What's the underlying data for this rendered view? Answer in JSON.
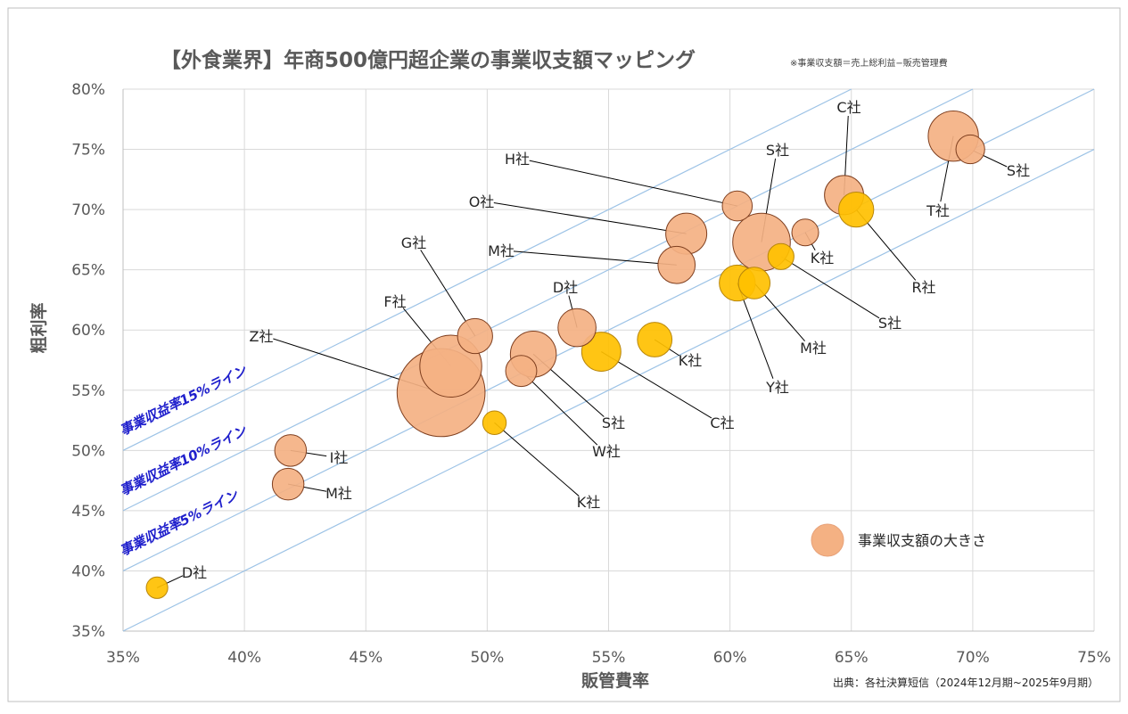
{
  "chart_data": {
    "type": "scatter",
    "title": "【外食業界】年商500億円超企業の事業収支額マッピング",
    "note": "※事業収支額＝売上総利益−販売管理費",
    "xlabel": "販管費率",
    "ylabel": "粗利率",
    "xlim": [
      35,
      75
    ],
    "ylim": [
      35,
      80
    ],
    "x_ticks": [
      "35%",
      "40%",
      "45%",
      "50%",
      "55%",
      "60%",
      "65%",
      "70%",
      "75%"
    ],
    "y_ticks": [
      "35%",
      "40%",
      "45%",
      "50%",
      "55%",
      "60%",
      "65%",
      "70%",
      "75%",
      "80%"
    ],
    "grid": true,
    "source": "出典：各社決算短信（2024年12月期~2025年9月期）",
    "legend": {
      "label": "事業収支額の大きさ",
      "placement": "bottom-right",
      "color": "#F4B183"
    },
    "colors": {
      "salmon": "#F4B183",
      "gold": "#FFC000",
      "line": "#9DC3E6",
      "line_label": "#1F1FCC",
      "grid": "#D9D9D9"
    },
    "ref_lines": [
      {
        "label": "事業収益率15%ライン",
        "offset": 15
      },
      {
        "label": "事業収益率10%ライン",
        "offset": 10
      },
      {
        "label": "事業収益率5%ライン",
        "offset": 5
      },
      {
        "label": "",
        "offset": 0
      }
    ],
    "points": [
      {
        "label": "T社",
        "x": 69.2,
        "y": 76.1,
        "size": 7,
        "color": "salmon"
      },
      {
        "label": "S社",
        "x": 69.9,
        "y": 75.0,
        "size": 1.3,
        "color": "salmon"
      },
      {
        "label": "C社",
        "x": 64.7,
        "y": 71.2,
        "size": 3.5,
        "color": "salmon"
      },
      {
        "label": "R社",
        "x": 65.2,
        "y": 70.0,
        "size": 2.5,
        "color": "gold"
      },
      {
        "label": "H社",
        "x": 60.3,
        "y": 70.3,
        "size": 1.5,
        "color": "salmon"
      },
      {
        "label": "S社",
        "x": 61.3,
        "y": 67.3,
        "size": 10,
        "color": "salmon"
      },
      {
        "label": "K社",
        "x": 63.1,
        "y": 68.1,
        "size": 1,
        "color": "salmon"
      },
      {
        "label": "S社",
        "x": 62.1,
        "y": 66.1,
        "size": 0.9,
        "color": "gold"
      },
      {
        "label": "O社",
        "x": 58.2,
        "y": 68.0,
        "size": 4,
        "color": "salmon"
      },
      {
        "label": "M社",
        "x": 57.8,
        "y": 65.4,
        "size": 3,
        "color": "salmon"
      },
      {
        "label": "M社",
        "x": 61.0,
        "y": 63.9,
        "size": 1.8,
        "color": "gold"
      },
      {
        "label": "Y社",
        "x": 60.3,
        "y": 63.9,
        "size": 2.7,
        "color": "gold"
      },
      {
        "label": "D社",
        "x": 53.7,
        "y": 60.2,
        "size": 3.2,
        "color": "salmon"
      },
      {
        "label": "K社",
        "x": 56.9,
        "y": 59.2,
        "size": 2.4,
        "color": "gold"
      },
      {
        "label": "C社",
        "x": 54.7,
        "y": 58.2,
        "size": 3.5,
        "color": "gold"
      },
      {
        "label": "G社",
        "x": 49.5,
        "y": 59.5,
        "size": 2.5,
        "color": "salmon"
      },
      {
        "label": "F社",
        "x": 48.5,
        "y": 57.0,
        "size": 12,
        "color": "salmon"
      },
      {
        "label": "Z社",
        "x": 48.1,
        "y": 54.8,
        "size": 28,
        "color": "salmon"
      },
      {
        "label": "S社",
        "x": 51.9,
        "y": 58.0,
        "size": 5.5,
        "color": "salmon"
      },
      {
        "label": "W社",
        "x": 51.4,
        "y": 56.6,
        "size": 1.7,
        "color": "salmon"
      },
      {
        "label": "K社",
        "x": 50.3,
        "y": 52.3,
        "size": 0.6,
        "color": "gold"
      },
      {
        "label": "I社",
        "x": 41.9,
        "y": 50.0,
        "size": 1.8,
        "color": "salmon"
      },
      {
        "label": "M社",
        "x": 41.8,
        "y": 47.2,
        "size": 1.8,
        "color": "salmon"
      },
      {
        "label": "D社",
        "x": 36.4,
        "y": 38.6,
        "size": 0.4,
        "color": "gold"
      }
    ]
  }
}
